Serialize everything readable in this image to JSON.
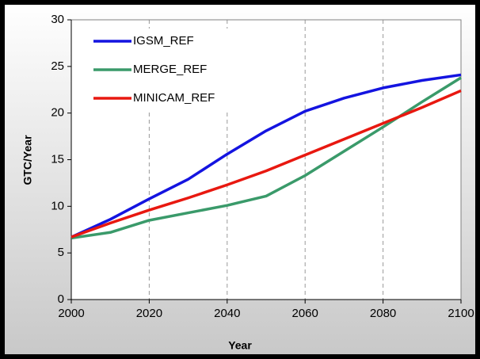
{
  "chart_data": {
    "type": "line",
    "x": [
      2000,
      2010,
      2020,
      2030,
      2040,
      2050,
      2060,
      2070,
      2080,
      2090,
      2100
    ],
    "series": [
      {
        "name": "IGSM_REF",
        "color": "#1414e0",
        "values": [
          6.7,
          8.6,
          10.8,
          12.9,
          15.6,
          18.1,
          20.2,
          21.6,
          22.7,
          23.5,
          24.1
        ]
      },
      {
        "name": "MERGE_REF",
        "color": "#3a9a6a",
        "values": [
          6.6,
          7.2,
          8.5,
          9.3,
          10.1,
          11.1,
          13.3,
          15.9,
          18.5,
          21.2,
          23.8
        ]
      },
      {
        "name": "MINICAM_REF",
        "color": "#e81810",
        "values": [
          6.7,
          8.2,
          9.6,
          10.9,
          12.3,
          13.8,
          15.5,
          17.2,
          18.9,
          20.6,
          22.4
        ]
      }
    ],
    "xlabel": "Year",
    "ylabel": "GTC/Year",
    "xlim": [
      2000,
      2100
    ],
    "xticks": [
      2000,
      2020,
      2040,
      2060,
      2080,
      2100
    ],
    "ylim": [
      0,
      30
    ],
    "yticks": [
      0,
      5,
      10,
      15,
      20,
      25,
      30
    ],
    "xgrid": true,
    "legend": "upper left"
  }
}
